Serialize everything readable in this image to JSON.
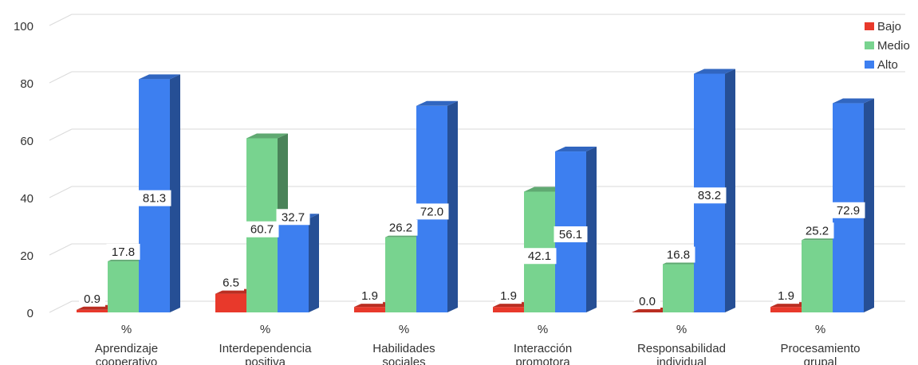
{
  "chart_data": {
    "type": "bar",
    "subtype": "3d-clustered-column",
    "categories": [
      {
        "symbol": "%",
        "line1": "Aprendizaje",
        "line2": "cooperativo"
      },
      {
        "symbol": "%",
        "line1": "Interdependencia",
        "line2": "positiva"
      },
      {
        "symbol": "%",
        "line1": "Habilidades",
        "line2": "sociales"
      },
      {
        "symbol": "%",
        "line1": "Interacción",
        "line2": "promotora"
      },
      {
        "symbol": "%",
        "line1": "Responsabilidad",
        "line2": "individual"
      },
      {
        "symbol": "%",
        "line1": "Procesamiento",
        "line2": "grupal"
      }
    ],
    "series": [
      {
        "name": "Bajo",
        "color": "#e8392b",
        "values": [
          0.9,
          6.5,
          1.9,
          1.9,
          0.0,
          1.9
        ]
      },
      {
        "name": "Medio",
        "color": "#78d38f",
        "values": [
          17.8,
          60.7,
          26.2,
          42.1,
          16.8,
          25.2
        ]
      },
      {
        "name": "Alto",
        "color": "#3d7ff0",
        "values": [
          81.3,
          32.7,
          72.0,
          56.1,
          83.2,
          72.9
        ]
      }
    ],
    "data_labels": [
      [
        "0.9",
        "6.5",
        "1.9",
        "1.9",
        "0.0",
        "1.9"
      ],
      [
        "17.8",
        "60.7",
        "26.2",
        "42.1",
        "16.8",
        "25.2"
      ],
      [
        "81.3",
        "32.7",
        "72.0",
        "56.1",
        "83.2",
        "72.9"
      ]
    ],
    "y_ticks": [
      "0",
      "20",
      "40",
      "60",
      "80",
      "100"
    ],
    "ylim": [
      0,
      100
    ],
    "grid": true,
    "legend_position": "top-right",
    "title": "",
    "xlabel": "",
    "ylabel": ""
  }
}
